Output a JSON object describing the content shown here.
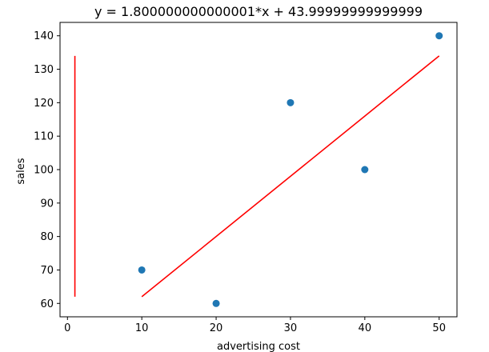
{
  "chart_data": {
    "type": "scatter",
    "title": "y = 1.800000000000001*x + 43.99999999999999",
    "xlabel": "advertising cost",
    "ylabel": "sales",
    "xlim": [
      -1,
      52.4
    ],
    "ylim": [
      56,
      144
    ],
    "xticks": [
      0,
      10,
      20,
      30,
      40,
      50
    ],
    "yticks": [
      60,
      70,
      80,
      90,
      100,
      110,
      120,
      130,
      140
    ],
    "grid": false,
    "points": [
      {
        "x": 10,
        "y": 70
      },
      {
        "x": 20,
        "y": 60
      },
      {
        "x": 30,
        "y": 120
      },
      {
        "x": 40,
        "y": 100
      },
      {
        "x": 50,
        "y": 140
      }
    ],
    "lines": [
      {
        "x": [
          10,
          20,
          30,
          40,
          50
        ],
        "y": [
          62,
          80,
          98,
          116,
          134
        ]
      },
      {
        "x": [
          1,
          1
        ],
        "y": [
          62,
          134
        ]
      }
    ],
    "colors": {
      "points": "#1f77b4",
      "line": "#ff0000",
      "axes": "#000000"
    }
  }
}
